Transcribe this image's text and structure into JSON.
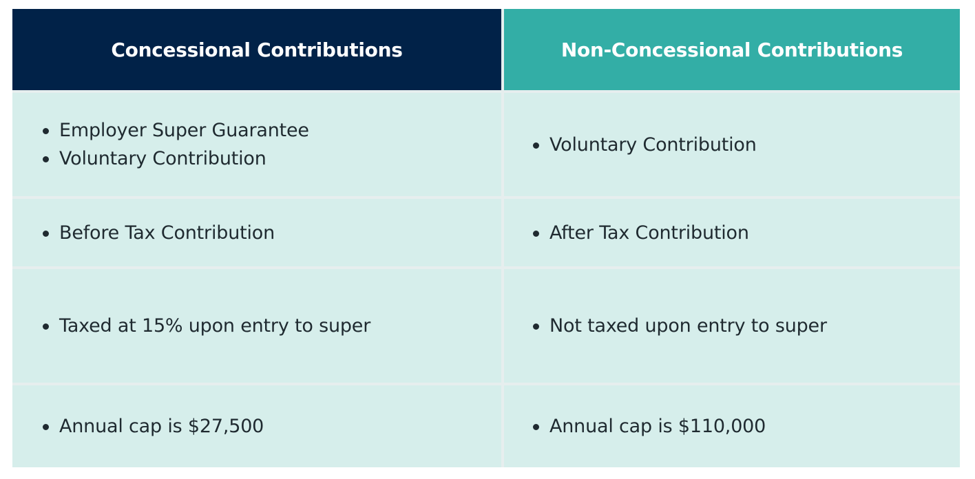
{
  "table": {
    "headers": {
      "left": "Concessional Contributions",
      "right": "Non-Concessional Contributions"
    },
    "rows": [
      {
        "left": [
          "Employer Super Guarantee",
          "Voluntary Contribution"
        ],
        "right": [
          "Voluntary Contribution"
        ]
      },
      {
        "left": [
          "Before Tax Contribution"
        ],
        "right": [
          "After Tax Contribution"
        ]
      },
      {
        "left": [
          "Taxed at 15% upon entry to super"
        ],
        "right": [
          "Not taxed upon entry to super"
        ]
      },
      {
        "left": [
          "Annual cap is $27,500"
        ],
        "right": [
          "Annual cap is $110,000"
        ]
      }
    ]
  },
  "colors": {
    "header_left": "#012248",
    "header_right": "#33aea6",
    "cell_bg": "#d6eeeb",
    "grid_lines": "#e6eeee",
    "text": "#1f2a30"
  }
}
